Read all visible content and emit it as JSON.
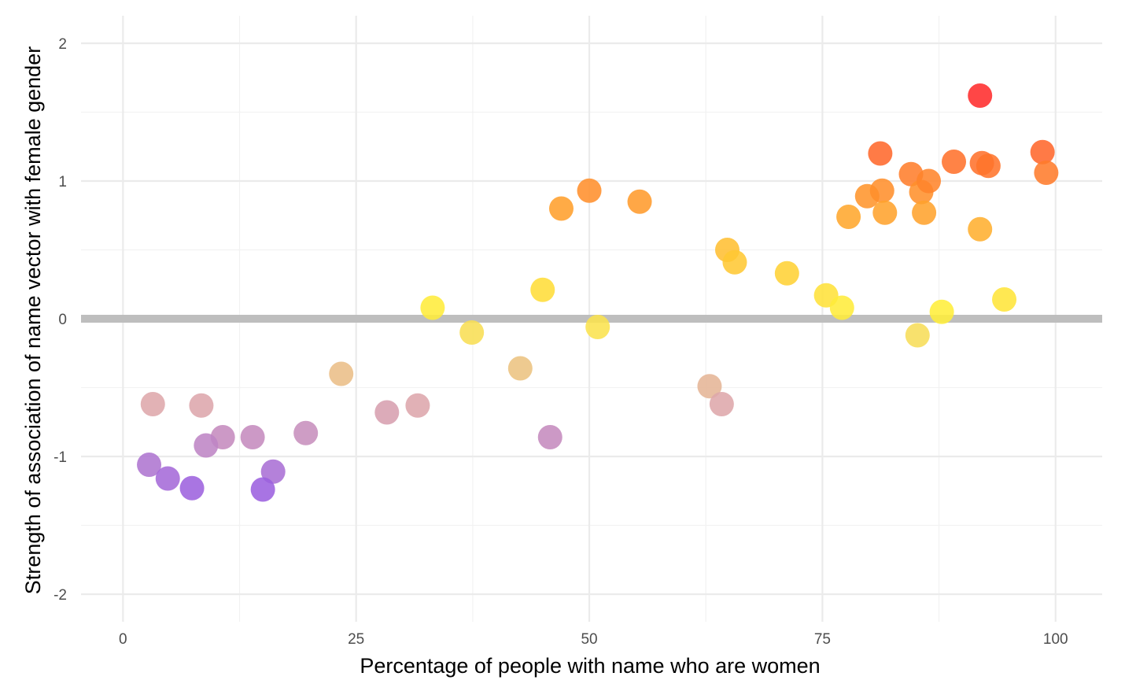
{
  "chart_data": {
    "type": "scatter",
    "title": "",
    "xlabel": "Percentage of people with name who are women",
    "ylabel": "Strength of association of name vector with female gender",
    "xlim": [
      -4.5,
      105
    ],
    "ylim": [
      -2.2,
      2.2
    ],
    "x_ticks": [
      0,
      25,
      50,
      75,
      100
    ],
    "x_tick_labels": [
      "0",
      "25",
      "50",
      "75",
      "100"
    ],
    "y_ticks": [
      -2,
      -1,
      0,
      1,
      2
    ],
    "y_tick_labels": [
      "-2",
      "-1",
      "0",
      "1",
      "2"
    ],
    "grid": true,
    "reference_line": {
      "y": 0,
      "color": "#bebebe"
    },
    "legend": "none",
    "color_scale": [
      "#9a5ee0",
      "#e0a8a8",
      "#ffee3a",
      "#ff9a2a",
      "#ff2a2a"
    ],
    "points": [
      {
        "x": 3.2,
        "y": -0.62
      },
      {
        "x": 8.4,
        "y": -0.63
      },
      {
        "x": 10.7,
        "y": -0.86
      },
      {
        "x": 8.9,
        "y": -0.92
      },
      {
        "x": 13.9,
        "y": -0.86
      },
      {
        "x": 19.6,
        "y": -0.83
      },
      {
        "x": 2.8,
        "y": -1.06
      },
      {
        "x": 4.8,
        "y": -1.16
      },
      {
        "x": 7.4,
        "y": -1.23
      },
      {
        "x": 16.1,
        "y": -1.11
      },
      {
        "x": 15.0,
        "y": -1.24
      },
      {
        "x": 23.4,
        "y": -0.4
      },
      {
        "x": 28.3,
        "y": -0.68
      },
      {
        "x": 31.6,
        "y": -0.63
      },
      {
        "x": 33.2,
        "y": 0.08
      },
      {
        "x": 37.4,
        "y": -0.1
      },
      {
        "x": 42.6,
        "y": -0.36
      },
      {
        "x": 45.0,
        "y": 0.21
      },
      {
        "x": 45.8,
        "y": -0.86
      },
      {
        "x": 47.0,
        "y": 0.8
      },
      {
        "x": 50.0,
        "y": 0.93
      },
      {
        "x": 50.9,
        "y": -0.06
      },
      {
        "x": 55.4,
        "y": 0.85
      },
      {
        "x": 62.9,
        "y": -0.49
      },
      {
        "x": 64.2,
        "y": -0.62
      },
      {
        "x": 64.8,
        "y": 0.5
      },
      {
        "x": 65.6,
        "y": 0.41
      },
      {
        "x": 71.2,
        "y": 0.33
      },
      {
        "x": 75.4,
        "y": 0.17
      },
      {
        "x": 77.1,
        "y": 0.08
      },
      {
        "x": 77.8,
        "y": 0.74
      },
      {
        "x": 79.8,
        "y": 0.89
      },
      {
        "x": 81.2,
        "y": 1.2
      },
      {
        "x": 81.4,
        "y": 0.93
      },
      {
        "x": 81.7,
        "y": 0.77
      },
      {
        "x": 84.5,
        "y": 1.05
      },
      {
        "x": 85.2,
        "y": -0.12
      },
      {
        "x": 85.6,
        "y": 0.92
      },
      {
        "x": 85.9,
        "y": 0.77
      },
      {
        "x": 86.4,
        "y": 1.0
      },
      {
        "x": 87.8,
        "y": 0.05
      },
      {
        "x": 89.1,
        "y": 1.14
      },
      {
        "x": 91.9,
        "y": 1.62
      },
      {
        "x": 91.9,
        "y": 0.65
      },
      {
        "x": 92.1,
        "y": 1.13
      },
      {
        "x": 92.8,
        "y": 1.11
      },
      {
        "x": 94.5,
        "y": 0.14
      },
      {
        "x": 98.6,
        "y": 1.21
      },
      {
        "x": 99.0,
        "y": 1.06
      }
    ]
  }
}
